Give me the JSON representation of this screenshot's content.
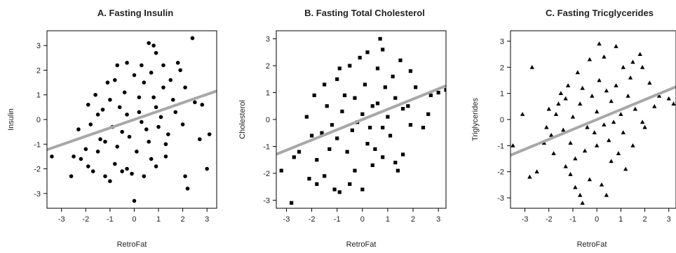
{
  "chart_data": [
    {
      "type": "scatter",
      "title": "A. Fasting Insulin",
      "xlabel": "RetroFat",
      "ylabel": "Insulin",
      "xlim": [
        -3.6,
        3.4
      ],
      "ylim": [
        -3.6,
        3.6
      ],
      "xticks": [
        "-3",
        "-2",
        "-1",
        "0",
        "1",
        "2",
        "3"
      ],
      "yticks": [
        "-3",
        "-2",
        "-1",
        "0",
        "1",
        "2",
        "3"
      ],
      "marker": "circle",
      "fit_line": {
        "intercept": 0.0,
        "slope": 0.34,
        "color": "#a8a8a8"
      },
      "grid": false,
      "points": [
        [
          -3.4,
          -1.5
        ],
        [
          -2.6,
          -2.3
        ],
        [
          -2.2,
          -1.6
        ],
        [
          -1.9,
          -1.9
        ],
        [
          -1.7,
          -2.1
        ],
        [
          -1.5,
          -1.3
        ],
        [
          -1.2,
          -2.3
        ],
        [
          -1.0,
          -2.5
        ],
        [
          -0.8,
          -1.8
        ],
        [
          -0.5,
          -2.1
        ],
        [
          -0.3,
          -2.0
        ],
        [
          -0.1,
          -2.2
        ],
        [
          0.0,
          -3.3
        ],
        [
          0.4,
          -2.3
        ],
        [
          0.7,
          -1.6
        ],
        [
          0.9,
          -1.9
        ],
        [
          1.3,
          -1.5
        ],
        [
          2.1,
          -2.3
        ],
        [
          2.2,
          -2.8
        ],
        [
          3.0,
          -2.0
        ],
        [
          2.7,
          -0.8
        ],
        [
          3.1,
          -0.6
        ],
        [
          2.5,
          0.7
        ],
        [
          2.8,
          0.6
        ],
        [
          2.1,
          1.3
        ],
        [
          1.9,
          2.0
        ],
        [
          1.8,
          2.3
        ],
        [
          1.2,
          2.2
        ],
        [
          0.9,
          2.7
        ],
        [
          0.6,
          3.1
        ],
        [
          0.8,
          3.0
        ],
        [
          2.4,
          3.3
        ],
        [
          0.3,
          2.2
        ],
        [
          -0.3,
          2.3
        ],
        [
          -0.7,
          2.2
        ],
        [
          -1.1,
          1.5
        ],
        [
          -1.6,
          1.0
        ],
        [
          -1.9,
          0.6
        ],
        [
          -2.3,
          -0.4
        ],
        [
          -2.0,
          -1.2
        ],
        [
          -2.5,
          -1.5
        ],
        [
          -1.3,
          0.4
        ],
        [
          -0.9,
          -0.3
        ],
        [
          -0.6,
          0.5
        ],
        [
          -0.2,
          -0.7
        ],
        [
          0.2,
          0.3
        ],
        [
          0.5,
          -0.4
        ],
        [
          0.8,
          0.9
        ],
        [
          1.1,
          0.1
        ],
        [
          1.4,
          -0.6
        ],
        [
          1.6,
          0.8
        ],
        [
          1.2,
          1.3
        ],
        [
          0.4,
          1.5
        ],
        [
          -0.4,
          1.1
        ],
        [
          -1.0,
          0.8
        ],
        [
          -1.4,
          -0.8
        ],
        [
          -0.7,
          -1.1
        ],
        [
          0.1,
          -1.3
        ],
        [
          0.6,
          -0.9
        ],
        [
          1.0,
          -0.3
        ],
        [
          1.7,
          0.3
        ],
        [
          2.0,
          -0.2
        ],
        [
          -1.8,
          -0.2
        ],
        [
          -1.2,
          -0.9
        ],
        [
          -0.3,
          0.2
        ],
        [
          0.3,
          -0.1
        ],
        [
          0.9,
          0.5
        ],
        [
          -0.8,
          1.6
        ],
        [
          0.0,
          1.8
        ],
        [
          0.7,
          1.9
        ],
        [
          1.5,
          1.6
        ],
        [
          -1.5,
          0.2
        ],
        [
          -0.5,
          -0.5
        ],
        [
          0.2,
          0.9
        ],
        [
          1.3,
          -1.0
        ]
      ]
    },
    {
      "type": "scatter",
      "title": "B. Fasting Total Cholesterol",
      "xlabel": "RetroFat",
      "ylabel": "Cholesterol",
      "xlim": [
        -3.4,
        3.3
      ],
      "ylim": [
        -3.3,
        3.3
      ],
      "xticks": [
        "-3",
        "-2",
        "-1",
        "0",
        "1",
        "2",
        "3"
      ],
      "yticks": [
        "-3",
        "-2",
        "-1",
        "0",
        "1",
        "2",
        "3"
      ],
      "marker": "square",
      "fit_line": {
        "intercept": 0.0,
        "slope": 0.38,
        "color": "#a8a8a8"
      },
      "grid": false,
      "points": [
        [
          -2.8,
          -3.1
        ],
        [
          -3.2,
          -1.9
        ],
        [
          -2.7,
          -1.4
        ],
        [
          -2.5,
          -1.2
        ],
        [
          -2.1,
          -2.2
        ],
        [
          -1.8,
          -2.4
        ],
        [
          -1.5,
          -2.1
        ],
        [
          -1.1,
          -2.6
        ],
        [
          -0.9,
          -2.7
        ],
        [
          -0.5,
          -2.4
        ],
        [
          0.0,
          -2.6
        ],
        [
          -0.3,
          -1.9
        ],
        [
          0.4,
          -1.7
        ],
        [
          0.8,
          -1.4
        ],
        [
          1.3,
          -1.6
        ],
        [
          1.4,
          -1.9
        ],
        [
          1.6,
          -1.3
        ],
        [
          2.4,
          -0.3
        ],
        [
          2.6,
          0.2
        ],
        [
          3.0,
          1.0
        ],
        [
          3.3,
          1.1
        ],
        [
          2.7,
          0.9
        ],
        [
          2.1,
          1.2
        ],
        [
          1.9,
          1.8
        ],
        [
          1.5,
          2.2
        ],
        [
          0.8,
          2.6
        ],
        [
          0.7,
          3.0
        ],
        [
          0.2,
          2.5
        ],
        [
          -0.1,
          2.3
        ],
        [
          -0.5,
          2.0
        ],
        [
          -1.0,
          1.5
        ],
        [
          -1.5,
          1.3
        ],
        [
          -1.9,
          0.9
        ],
        [
          -2.2,
          0.1
        ],
        [
          -2.0,
          -0.6
        ],
        [
          -1.6,
          -0.5
        ],
        [
          -1.2,
          -0.2
        ],
        [
          -0.8,
          0.3
        ],
        [
          -0.4,
          -0.4
        ],
        [
          0.0,
          0.2
        ],
        [
          0.3,
          -0.3
        ],
        [
          0.6,
          0.6
        ],
        [
          1.0,
          0.1
        ],
        [
          1.3,
          0.8
        ],
        [
          1.6,
          0.4
        ],
        [
          1.9,
          -0.2
        ],
        [
          0.9,
          1.2
        ],
        [
          0.1,
          1.3
        ],
        [
          -0.7,
          0.9
        ],
        [
          -1.3,
          -1.1
        ],
        [
          -0.6,
          -1.2
        ],
        [
          0.2,
          -0.9
        ],
        [
          0.5,
          -1.1
        ],
        [
          1.1,
          -0.6
        ],
        [
          -1.8,
          -1.5
        ],
        [
          -1.0,
          -0.7
        ],
        [
          -0.2,
          -0.1
        ],
        [
          0.4,
          0.5
        ],
        [
          1.2,
          1.6
        ],
        [
          -1.4,
          0.5
        ],
        [
          -0.9,
          1.9
        ],
        [
          0.6,
          1.9
        ],
        [
          1.8,
          0.5
        ],
        [
          -0.3,
          0.8
        ],
        [
          0.8,
          -0.3
        ]
      ]
    },
    {
      "type": "scatter",
      "title": "C. Fasting Tricglycerides",
      "xlabel": "RetroFat",
      "ylabel": "Triglycerides",
      "xlim": [
        -3.6,
        3.3
      ],
      "ylim": [
        -3.4,
        3.4
      ],
      "xticks": [
        "-3",
        "-2",
        "-1",
        "0",
        "1",
        "2",
        "3"
      ],
      "yticks": [
        "-3",
        "-2",
        "-1",
        "0",
        "1",
        "2",
        "3"
      ],
      "marker": "triangle",
      "fit_line": {
        "intercept": 0.0,
        "slope": 0.38,
        "color": "#a8a8a8"
      },
      "grid": false,
      "points": [
        [
          -3.5,
          -1.0
        ],
        [
          -3.1,
          0.2
        ],
        [
          -2.7,
          2.0
        ],
        [
          -2.8,
          -2.2
        ],
        [
          -2.5,
          -2.0
        ],
        [
          -2.2,
          -0.9
        ],
        [
          -2.0,
          0.4
        ],
        [
          -1.8,
          -1.3
        ],
        [
          -1.5,
          1.0
        ],
        [
          -1.3,
          -1.8
        ],
        [
          -1.1,
          -2.1
        ],
        [
          -0.9,
          -2.6
        ],
        [
          -0.7,
          -2.9
        ],
        [
          -0.6,
          -3.2
        ],
        [
          -0.3,
          -2.3
        ],
        [
          0.2,
          -2.5
        ],
        [
          0.4,
          -2.9
        ],
        [
          0.6,
          -1.6
        ],
        [
          0.9,
          -1.3
        ],
        [
          1.2,
          -1.9
        ],
        [
          1.5,
          -1.0
        ],
        [
          2.0,
          -0.3
        ],
        [
          2.4,
          0.5
        ],
        [
          2.6,
          0.9
        ],
        [
          3.0,
          0.8
        ],
        [
          3.2,
          0.6
        ],
        [
          2.2,
          1.4
        ],
        [
          1.9,
          2.0
        ],
        [
          1.8,
          2.5
        ],
        [
          1.5,
          2.2
        ],
        [
          1.1,
          2.0
        ],
        [
          0.8,
          2.8
        ],
        [
          0.3,
          2.4
        ],
        [
          0.1,
          2.9
        ],
        [
          -0.3,
          2.3
        ],
        [
          -0.8,
          1.8
        ],
        [
          -1.2,
          1.3
        ],
        [
          -1.6,
          0.6
        ],
        [
          -2.1,
          -0.3
        ],
        [
          -1.7,
          0.2
        ],
        [
          -1.4,
          -0.4
        ],
        [
          -1.0,
          0.1
        ],
        [
          -0.7,
          0.6
        ],
        [
          -0.4,
          -0.3
        ],
        [
          0.0,
          0.3
        ],
        [
          0.3,
          -0.2
        ],
        [
          0.6,
          0.7
        ],
        [
          1.0,
          0.2
        ],
        [
          1.3,
          0.9
        ],
        [
          1.6,
          0.4
        ],
        [
          1.9,
          -0.1
        ],
        [
          0.8,
          1.3
        ],
        [
          0.1,
          1.5
        ],
        [
          -0.6,
          1.2
        ],
        [
          -1.1,
          -0.9
        ],
        [
          -0.5,
          -1.2
        ],
        [
          0.0,
          -1.0
        ],
        [
          0.5,
          -0.8
        ],
        [
          1.1,
          -0.5
        ],
        [
          -1.9,
          -0.6
        ],
        [
          -0.9,
          -1.5
        ],
        [
          -0.2,
          0.9
        ],
        [
          0.4,
          1.1
        ],
        [
          1.4,
          1.6
        ],
        [
          -1.3,
          0.8
        ],
        [
          -0.1,
          -0.5
        ],
        [
          0.7,
          -0.1
        ]
      ]
    }
  ]
}
